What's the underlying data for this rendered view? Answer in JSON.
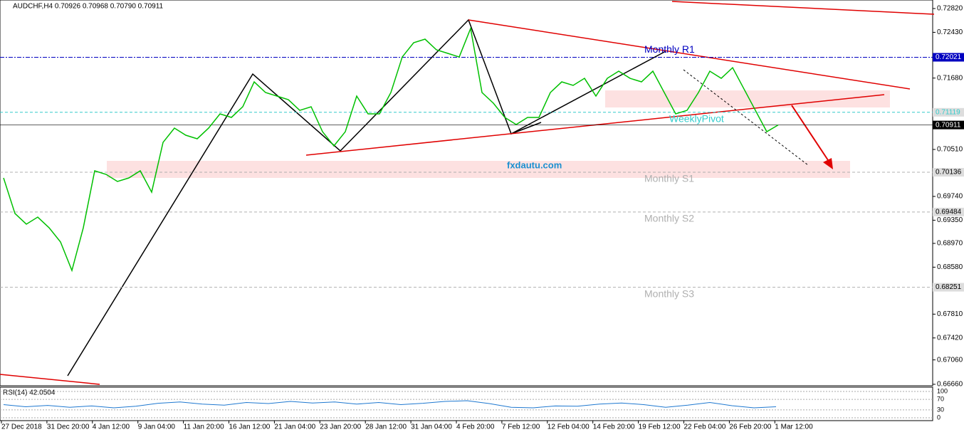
{
  "chart_data": {
    "type": "line",
    "title": "AUDCHF,H4  0.70926 0.70968 0.70790 0.70911",
    "watermark": "fxdautu.com",
    "x_labels": [
      "27 Dec 2018",
      "31 Dec 20:00",
      "4 Jan 12:00",
      "9 Jan 04:00",
      "11 Jan 20:00",
      "16 Jan 12:00",
      "21 Jan 04:00",
      "23 Jan 20:00",
      "28 Jan 12:00",
      "31 Jan 04:00",
      "4 Feb 20:00",
      "7 Feb 12:00",
      "12 Feb 04:00",
      "14 Feb 20:00",
      "19 Feb 12:00",
      "22 Feb 04:00",
      "26 Feb 20:00",
      "1 Mar 12:00"
    ],
    "series": [
      {
        "color": "#00c000",
        "values": [
          0.70043,
          0.6946,
          0.69285,
          0.69401,
          0.69226,
          0.68993,
          0.68526,
          0.69226,
          0.7016,
          0.70101,
          0.69985,
          0.70043,
          0.7016,
          0.6981,
          0.70626,
          0.7086,
          0.70743,
          0.70685,
          0.7086,
          0.71093,
          0.71035,
          0.7121,
          0.71618,
          0.71443,
          0.71385,
          0.71326,
          0.71151,
          0.7121,
          0.70801,
          0.70568,
          0.70801,
          0.71385,
          0.71093,
          0.71093,
          0.71443,
          0.72026,
          0.7226,
          0.72318,
          0.72143,
          0.72085,
          0.72026,
          0.72493,
          0.71443,
          0.71268,
          0.71035,
          0.70918,
          0.71035,
          0.71035,
          0.71443,
          0.71618,
          0.7156,
          0.71676,
          0.71385,
          0.71676,
          0.71793,
          0.71676,
          0.71618,
          0.71793,
          0.71443,
          0.71093,
          0.71151,
          0.71443,
          0.71793,
          0.71676,
          0.71851,
          0.71501,
          0.71151,
          0.70801,
          0.70911
        ]
      }
    ],
    "ylim": [
      0.66636,
      0.7296
    ],
    "yticks": [
      {
        "value": 0.7282,
        "label": "0.72820"
      },
      {
        "value": 0.7243,
        "label": "0.72430"
      },
      {
        "value": 0.7168,
        "label": "0.71680"
      },
      {
        "value": 0.7051,
        "label": "0.70510"
      },
      {
        "value": 0.6974,
        "label": "0.69740"
      },
      {
        "value": 0.6935,
        "label": "0.69350"
      },
      {
        "value": 0.6897,
        "label": "0.68970"
      },
      {
        "value": 0.6858,
        "label": "0.68580"
      },
      {
        "value": 0.6781,
        "label": "0.67810"
      },
      {
        "value": 0.6742,
        "label": "0.67420"
      },
      {
        "value": 0.6706,
        "label": "0.67060"
      },
      {
        "value": 0.6666,
        "label": "0.66660"
      }
    ],
    "levels": [
      {
        "name": "Monthly R1",
        "value": 0.72021,
        "label": "0.72021",
        "color": "#0000c0"
      },
      {
        "name": "WeeklyPivot",
        "value": 0.71119,
        "label": "0.71119",
        "color": "#33cccc"
      },
      {
        "value": 0.70911,
        "label": "0.70911",
        "color": "#000000"
      },
      {
        "name": "Monthly S1",
        "value": 0.70136,
        "label": "0.70136",
        "color": "#b0b0b0"
      },
      {
        "name": "Monthly S2",
        "value": 0.69484,
        "label": "0.69484",
        "color": "#b0b0b0"
      },
      {
        "name": "Monthly S3",
        "value": 0.68251,
        "label": "0.68251",
        "color": "#b0b0b0"
      }
    ],
    "rsi": {
      "title": "RSI(14) 42.0504",
      "color": "#1e78d0",
      "ylim": [
        0,
        100
      ],
      "yticks": [
        0,
        30,
        70,
        100
      ],
      "values": [
        50,
        42,
        47,
        40,
        45,
        38,
        44,
        55,
        60,
        52,
        48,
        58,
        54,
        62,
        56,
        60,
        52,
        58,
        50,
        55,
        62,
        65,
        54,
        40,
        38,
        45,
        44,
        52,
        56,
        50,
        40,
        48,
        58,
        46,
        38,
        42
      ]
    }
  }
}
